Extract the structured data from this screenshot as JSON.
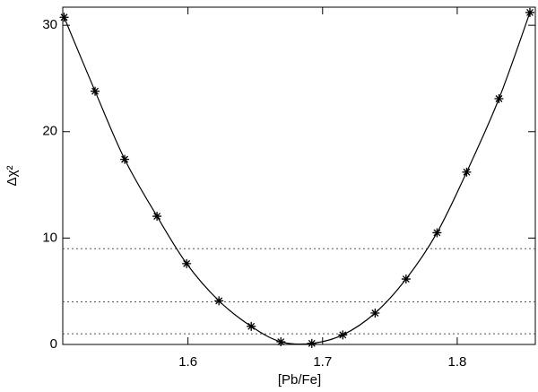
{
  "chart_data": {
    "type": "scatter",
    "xlabel": "[Pb/Fe]",
    "ylabel": "Δχ²",
    "x": [
      1.508,
      1.531,
      1.553,
      1.577,
      1.599,
      1.623,
      1.647,
      1.669,
      1.692,
      1.715,
      1.739,
      1.762,
      1.785,
      1.807,
      1.831,
      1.854
    ],
    "values": [
      30.75,
      23.8,
      17.4,
      12.05,
      7.6,
      4.1,
      1.7,
      0.25,
      0.1,
      0.9,
      2.95,
      6.15,
      10.5,
      16.2,
      23.1,
      31.2
    ],
    "color": "#000000",
    "fit_line": true,
    "hlines": [
      1,
      4,
      9
    ],
    "xlim": [
      1.507,
      1.858
    ],
    "ylim": [
      0,
      31.7
    ],
    "xticks": [
      1.6,
      1.7,
      1.8
    ],
    "yticks": [
      0,
      10,
      20,
      30
    ]
  }
}
